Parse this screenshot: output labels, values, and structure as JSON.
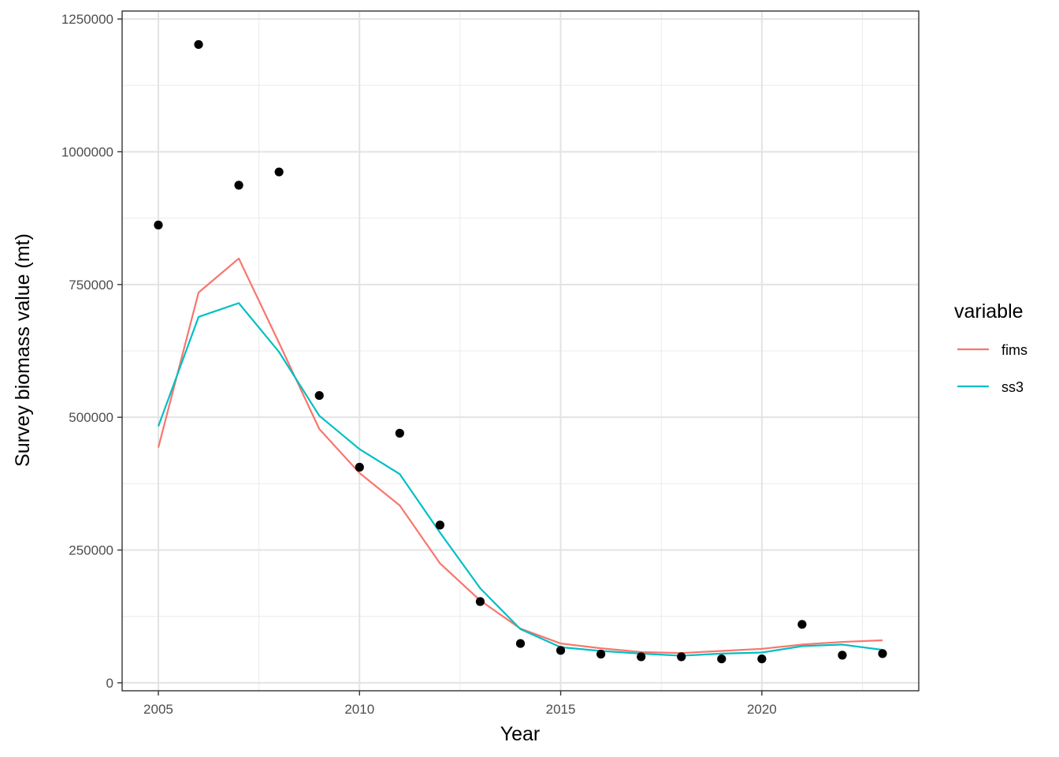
{
  "chart_data": {
    "type": "line",
    "xlabel": "Year",
    "ylabel": "Survey biomass value (mt)",
    "xlim": [
      2004.1,
      2023.9
    ],
    "ylim": [
      -15000,
      1265000
    ],
    "x_ticks": [
      2005,
      2010,
      2015,
      2020
    ],
    "x_tick_labels": [
      "2005",
      "2010",
      "2015",
      "2020"
    ],
    "y_ticks": [
      0,
      250000,
      500000,
      750000,
      1000000,
      1250000
    ],
    "y_tick_labels": [
      "0",
      "250000",
      "500000",
      "750000",
      "1000000",
      "1250000"
    ],
    "grid": true,
    "legend": {
      "title": "variable",
      "position": "right"
    },
    "x": [
      2005,
      2006,
      2007,
      2008,
      2009,
      2010,
      2011,
      2012,
      2013,
      2014,
      2015,
      2016,
      2017,
      2018,
      2019,
      2020,
      2021,
      2022,
      2023
    ],
    "series": [
      {
        "name": "fims",
        "color": "#F8766D",
        "kind": "line",
        "values": [
          443000,
          735000,
          799000,
          640000,
          478000,
          395000,
          334000,
          225000,
          155000,
          102000,
          74000,
          65000,
          58000,
          56000,
          60000,
          64000,
          72000,
          77000,
          80000
        ]
      },
      {
        "name": "ss3",
        "color": "#00BFC4",
        "kind": "line",
        "values": [
          483000,
          689000,
          715000,
          623000,
          503000,
          440000,
          393000,
          283000,
          178000,
          101000,
          67000,
          60000,
          55000,
          51000,
          55000,
          57000,
          69000,
          72000,
          62000
        ]
      }
    ],
    "observed": {
      "color": "#000000",
      "kind": "points",
      "values": [
        862000,
        1202000,
        937000,
        962000,
        541000,
        406000,
        470000,
        297000,
        153000,
        74000,
        61000,
        54000,
        49000,
        49000,
        45000,
        45000,
        110000,
        52000,
        55000
      ]
    }
  }
}
